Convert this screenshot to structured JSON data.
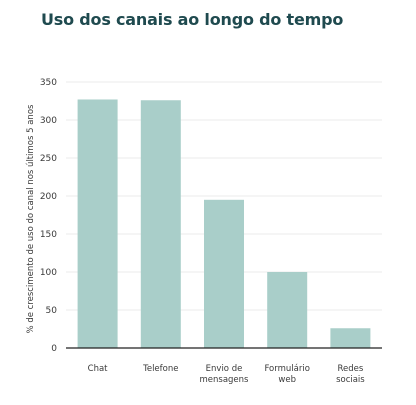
{
  "chart_data": {
    "type": "bar",
    "title": "Uso dos canais ao longo do tempo",
    "ylabel": "% de crescimento de uso do canal nos últimos 5 anos",
    "xlabel": "",
    "categories": [
      [
        "Chat"
      ],
      [
        "Telefone"
      ],
      [
        "Envio de",
        "mensagens"
      ],
      [
        "Formulário",
        "web"
      ],
      [
        "Redes",
        "sociais"
      ]
    ],
    "values": [
      327,
      326,
      195,
      100,
      26
    ],
    "ylim": [
      0,
      350
    ],
    "yticks": [
      0,
      50,
      100,
      150,
      200,
      250,
      300,
      350
    ],
    "grid": true,
    "colors": {
      "bar": "#a9cec9",
      "title": "#1f4a4f",
      "grid": "#ebebeb",
      "axis": "#222222"
    }
  }
}
